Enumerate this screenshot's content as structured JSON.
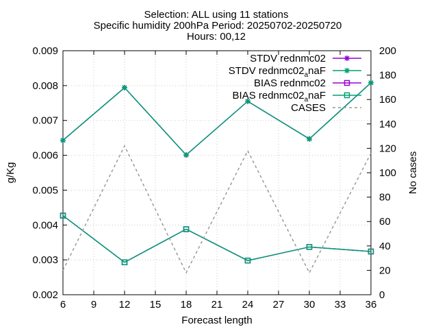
{
  "chart_data": {
    "type": "line",
    "title_lines": [
      "Selection: ALL using    11 stations",
      "Specific humidity 200hPa   Period: 20250702-20250720",
      "Hours: 00,12"
    ],
    "xlabel": "Forecast length",
    "ylabel_left": "g/Kg",
    "ylabel_right": "No cases",
    "xlim": [
      6,
      36
    ],
    "ylim_left": [
      0.002,
      0.009
    ],
    "ylim_right": [
      0,
      200
    ],
    "x_ticks": [
      "6",
      "9",
      "12",
      "15",
      "18",
      "21",
      "24",
      "27",
      "30",
      "33",
      "36"
    ],
    "y_ticks_left": [
      "0.002",
      "0.003",
      "0.004",
      "0.005",
      "0.006",
      "0.007",
      "0.008",
      "0.009"
    ],
    "y_ticks_right": [
      "0",
      "20",
      "40",
      "60",
      "80",
      "100",
      "120",
      "140",
      "160",
      "180",
      "200"
    ],
    "grid": true,
    "legend_position": "top-right",
    "x": [
      6,
      12,
      18,
      24,
      30,
      36
    ],
    "series": [
      {
        "name": "STDV rednmc02",
        "axis": "left",
        "color": "#9400d3",
        "marker": "asterisk",
        "values": [
          0.00643,
          0.00794,
          0.00601,
          0.00755,
          0.00647,
          0.00808
        ]
      },
      {
        "name": "STDV rednmc02",
        "name_sub": "a",
        "name_suffix": "naF",
        "axis": "left",
        "color": "#009e73",
        "marker": "asterisk",
        "values": [
          0.00643,
          0.00794,
          0.00601,
          0.00755,
          0.00647,
          0.00808
        ]
      },
      {
        "name": "BIAS rednmc02",
        "axis": "left",
        "color": "#9400d3",
        "marker": "square",
        "values": [
          0.00427,
          0.00293,
          0.00388,
          0.00298,
          0.00337,
          0.00324
        ]
      },
      {
        "name": "BIAS rednmc02",
        "name_sub": "a",
        "name_suffix": "naF",
        "axis": "left",
        "color": "#009e73",
        "marker": "square",
        "values": [
          0.00427,
          0.00293,
          0.00388,
          0.00298,
          0.00337,
          0.00324
        ]
      },
      {
        "name": "CASES",
        "axis": "right",
        "color": "#999999",
        "marker": "none",
        "dashed": true,
        "values": [
          20,
          122,
          18,
          118,
          18,
          116
        ]
      }
    ]
  }
}
